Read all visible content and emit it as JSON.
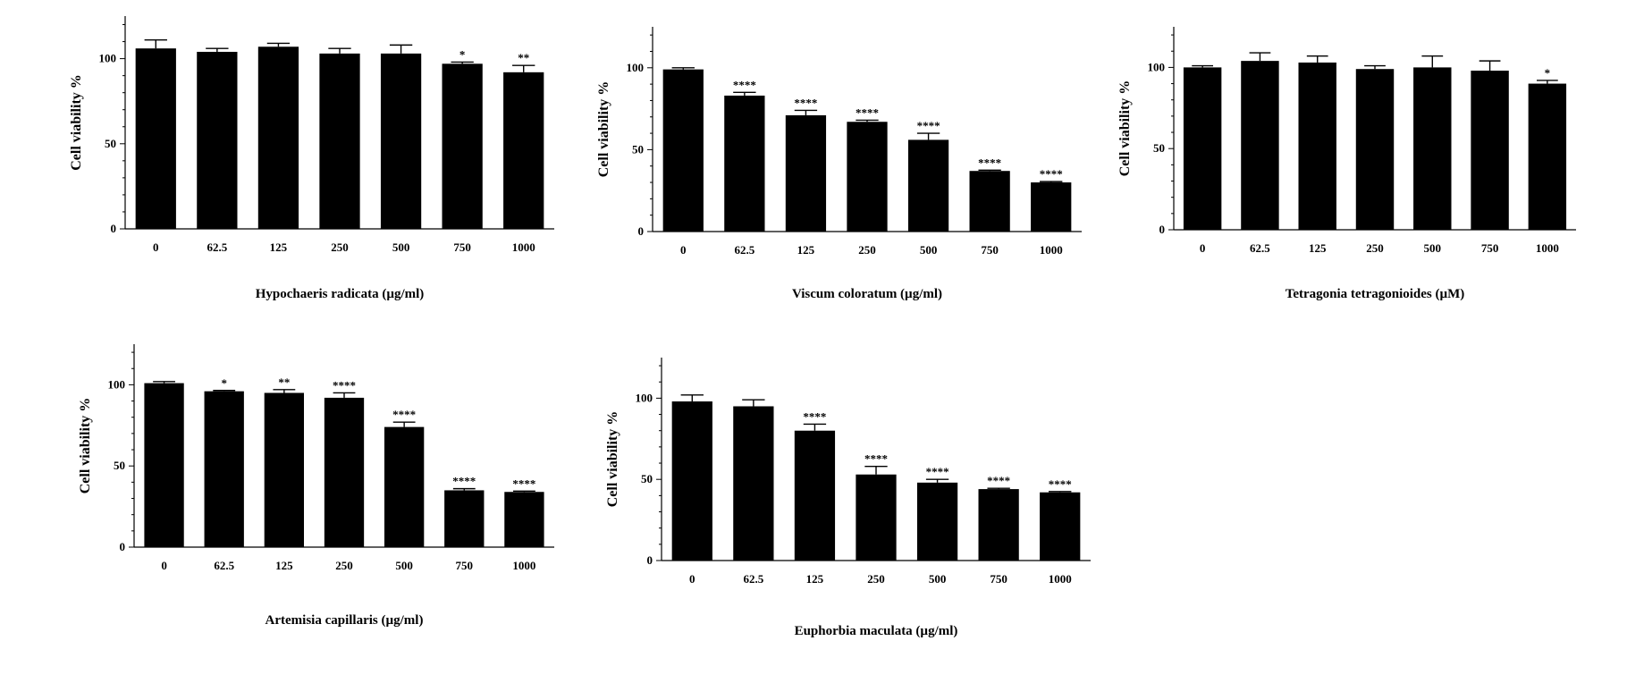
{
  "chart_data": [
    {
      "type": "bar",
      "title": "",
      "xlabel": "Hypochaeris radicata (µg/ml)",
      "ylabel": "Cell viability %",
      "ylim": [
        0,
        125
      ],
      "yticks": [
        0,
        50,
        100
      ],
      "categories": [
        "0",
        "62.5",
        "125",
        "250",
        "500",
        "750",
        "1000"
      ],
      "values": [
        106,
        104,
        107,
        103,
        103,
        97,
        92
      ],
      "errors": [
        5,
        2,
        2,
        3,
        5,
        1,
        4
      ],
      "significance": [
        "",
        "",
        "",
        "",
        "",
        "*",
        "**"
      ]
    },
    {
      "type": "bar",
      "title": "",
      "xlabel": "Viscum coloratum (µg/ml)",
      "ylabel": "Cell viability %",
      "ylim": [
        0,
        125
      ],
      "yticks": [
        0,
        50,
        100
      ],
      "categories": [
        "0",
        "62.5",
        "125",
        "250",
        "500",
        "750",
        "1000"
      ],
      "values": [
        99,
        83,
        71,
        67,
        56,
        37,
        30
      ],
      "errors": [
        1,
        2,
        3,
        1,
        4,
        0.5,
        0.5
      ],
      "significance": [
        "",
        "****",
        "****",
        "****",
        "****",
        "****",
        "****"
      ]
    },
    {
      "type": "bar",
      "title": "",
      "xlabel": "Tetragonia tetragonioides (µM)",
      "ylabel": "Cell viability %",
      "ylim": [
        0,
        125
      ],
      "yticks": [
        0,
        50,
        100
      ],
      "categories": [
        "0",
        "62.5",
        "125",
        "250",
        "500",
        "750",
        "1000"
      ],
      "values": [
        100,
        104,
        103,
        99,
        100,
        98,
        90
      ],
      "errors": [
        1,
        5,
        4,
        2,
        7,
        6,
        2
      ],
      "significance": [
        "",
        "",
        "",
        "",
        "",
        "",
        "*"
      ]
    },
    {
      "type": "bar",
      "title": "",
      "xlabel": "Artemisia capillaris (µg/ml)",
      "ylabel": "Cell viability %",
      "ylim": [
        0,
        125
      ],
      "yticks": [
        0,
        50,
        100
      ],
      "categories": [
        "0",
        "62.5",
        "125",
        "250",
        "500",
        "750",
        "1000"
      ],
      "values": [
        101,
        96,
        95,
        92,
        74,
        35,
        34
      ],
      "errors": [
        1,
        0.5,
        2,
        3,
        3,
        1,
        0.5
      ],
      "significance": [
        "",
        "*",
        "**",
        "****",
        "****",
        "****",
        "****"
      ]
    },
    {
      "type": "bar",
      "title": "",
      "xlabel": "Euphorbia maculata (µg/ml)",
      "ylabel": "Cell viability %",
      "ylim": [
        0,
        125
      ],
      "yticks": [
        0,
        50,
        100
      ],
      "categories": [
        "0",
        "62.5",
        "125",
        "250",
        "500",
        "750",
        "1000"
      ],
      "values": [
        98,
        95,
        80,
        53,
        48,
        44,
        42
      ],
      "errors": [
        4,
        4,
        4,
        5,
        2,
        0.5,
        0.5
      ],
      "significance": [
        "",
        "",
        "****",
        "****",
        "****",
        "****",
        "****"
      ]
    }
  ]
}
